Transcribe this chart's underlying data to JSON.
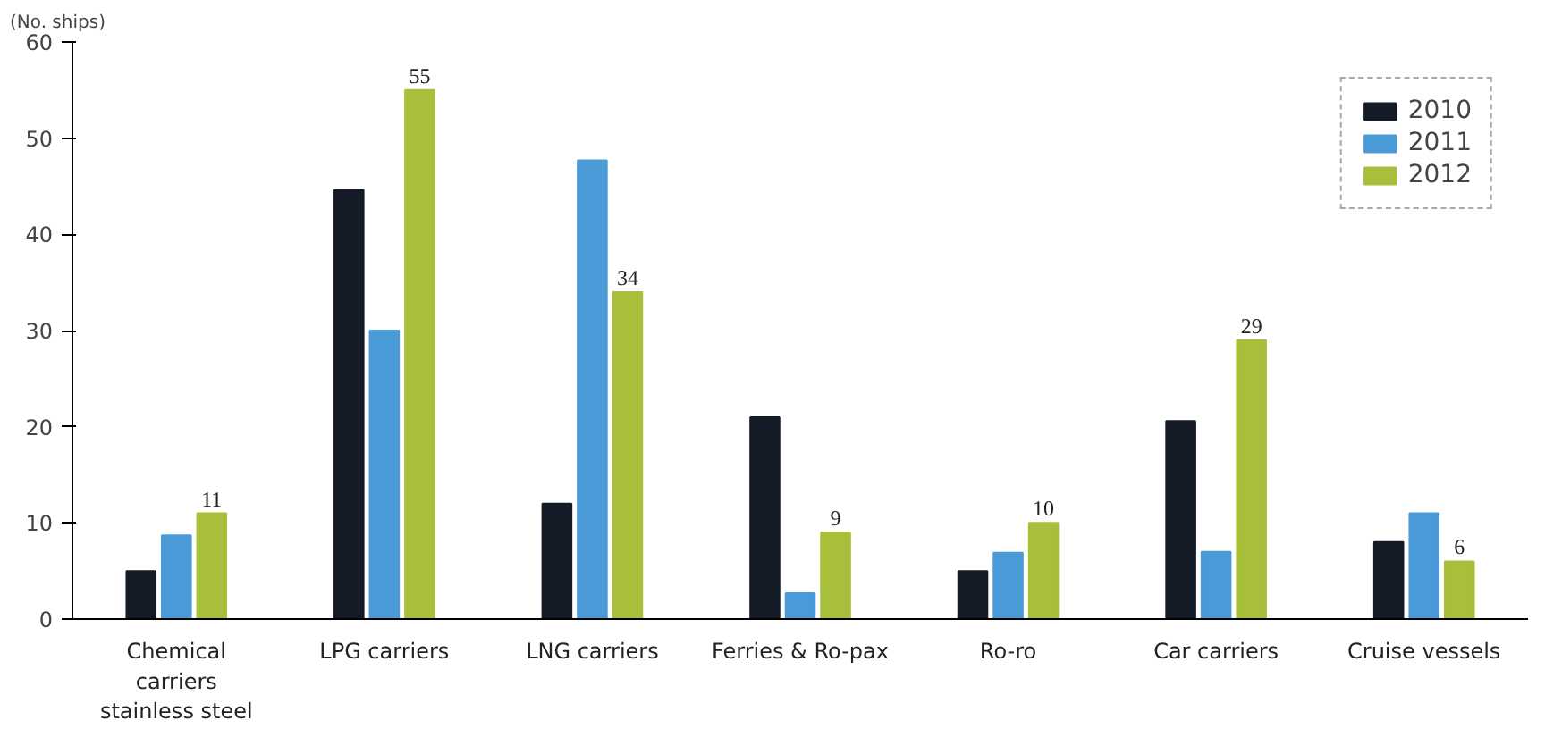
{
  "chart_data": {
    "type": "bar",
    "ylabel": "(No. ships)",
    "categories": [
      "Chemical carriers stainless steel",
      "LPG carriers",
      "LNG carriers",
      "Ferries & Ro-pax",
      "Ro-ro",
      "Car carriers",
      "Cruise vessels"
    ],
    "series": [
      {
        "name": "2010",
        "color": "#141a26",
        "values": [
          5,
          44.6,
          12,
          21,
          5,
          20.6,
          8
        ]
      },
      {
        "name": "2011",
        "color": "#4a9ad8",
        "values": [
          8.7,
          30,
          47.7,
          2.7,
          6.9,
          7,
          11
        ]
      },
      {
        "name": "2012",
        "color": "#a7bf3a",
        "values": [
          11,
          55,
          34,
          9,
          10,
          29,
          6
        ],
        "value_labels": [
          "11",
          "55",
          "34",
          "9",
          "10",
          "29",
          "6"
        ]
      }
    ],
    "ylim": [
      0,
      60
    ],
    "yticks": [
      0,
      10,
      20,
      30,
      40,
      50,
      60
    ],
    "grid": false,
    "legend": "top right"
  }
}
